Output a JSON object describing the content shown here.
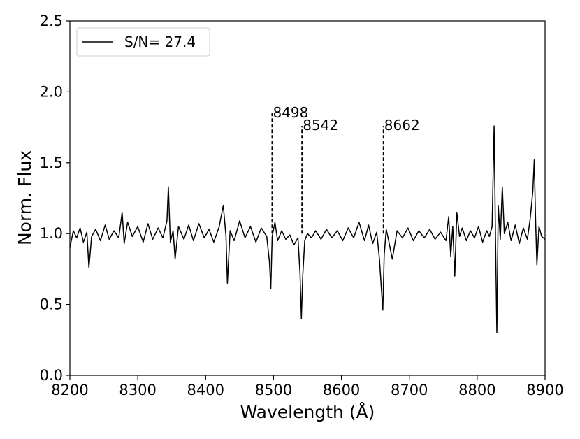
{
  "chart_data": {
    "type": "line",
    "xlabel": "Wavelength (Å)",
    "ylabel": "Norm. Flux",
    "xlim": [
      8200,
      8900
    ],
    "ylim": [
      0.0,
      2.5
    ],
    "xticks": [
      8200,
      8300,
      8400,
      8500,
      8600,
      8700,
      8800,
      8900
    ],
    "yticks": [
      0.0,
      0.5,
      1.0,
      1.5,
      2.0,
      2.5
    ],
    "ytick_labels": [
      "0.0",
      "0.5",
      "1.0",
      "1.5",
      "2.0",
      "2.5"
    ],
    "legend": {
      "location": "upper-left",
      "label": "S/N= 27.4"
    },
    "grid": false,
    "line_color": "#000000",
    "series": [
      {
        "name": "S/N= 27.4",
        "x": [
          8200,
          8205,
          8210,
          8215,
          8220,
          8225,
          8228,
          8232,
          8238,
          8245,
          8252,
          8258,
          8265,
          8272,
          8277,
          8280,
          8285,
          8292,
          8300,
          8308,
          8315,
          8322,
          8330,
          8337,
          8343,
          8345,
          8348,
          8352,
          8355,
          8360,
          8368,
          8375,
          8382,
          8390,
          8398,
          8405,
          8412,
          8420,
          8426,
          8430,
          8432,
          8436,
          8442,
          8450,
          8458,
          8466,
          8474,
          8482,
          8490,
          8494,
          8496,
          8498,
          8502,
          8506,
          8512,
          8518,
          8524,
          8530,
          8536,
          8539,
          8541,
          8543,
          8546,
          8550,
          8556,
          8562,
          8570,
          8578,
          8586,
          8594,
          8602,
          8610,
          8618,
          8626,
          8634,
          8640,
          8646,
          8652,
          8656,
          8659,
          8661,
          8663,
          8666,
          8670,
          8675,
          8682,
          8690,
          8698,
          8706,
          8714,
          8722,
          8730,
          8738,
          8746,
          8754,
          8758,
          8761,
          8764,
          8767,
          8770,
          8774,
          8778,
          8784,
          8790,
          8796,
          8802,
          8808,
          8814,
          8818,
          8822,
          8825,
          8827,
          8829,
          8831,
          8834,
          8837,
          8840,
          8845,
          8850,
          8856,
          8862,
          8868,
          8874,
          8878,
          8882,
          8884,
          8886,
          8888,
          8891,
          8895,
          8900
        ],
        "values": [
          0.9,
          1.02,
          0.97,
          1.04,
          0.94,
          1.01,
          0.76,
          0.98,
          1.03,
          0.95,
          1.06,
          0.96,
          1.02,
          0.97,
          1.15,
          0.93,
          1.08,
          0.98,
          1.05,
          0.94,
          1.07,
          0.96,
          1.04,
          0.97,
          1.09,
          1.33,
          0.94,
          1.02,
          0.82,
          1.05,
          0.96,
          1.06,
          0.95,
          1.07,
          0.97,
          1.03,
          0.94,
          1.05,
          1.2,
          0.98,
          0.65,
          1.02,
          0.95,
          1.09,
          0.97,
          1.05,
          0.94,
          1.04,
          0.98,
          0.8,
          0.61,
          0.98,
          1.08,
          0.95,
          1.02,
          0.96,
          0.99,
          0.92,
          0.97,
          0.72,
          0.4,
          0.7,
          0.95,
          1.0,
          0.97,
          1.02,
          0.96,
          1.03,
          0.97,
          1.02,
          0.95,
          1.04,
          0.97,
          1.08,
          0.95,
          1.06,
          0.93,
          1.01,
          0.82,
          0.6,
          0.46,
          0.85,
          1.03,
          0.94,
          0.82,
          1.02,
          0.97,
          1.04,
          0.95,
          1.02,
          0.97,
          1.03,
          0.96,
          1.01,
          0.95,
          1.12,
          0.84,
          1.05,
          0.7,
          1.15,
          0.98,
          1.04,
          0.95,
          1.02,
          0.97,
          1.05,
          0.94,
          1.02,
          0.98,
          1.05,
          1.76,
          0.95,
          0.3,
          1.2,
          0.96,
          1.33,
          1.0,
          1.08,
          0.95,
          1.06,
          0.93,
          1.04,
          0.96,
          1.1,
          1.3,
          1.52,
          1.1,
          0.78,
          1.05,
          0.98,
          0.96
        ]
      }
    ],
    "annotations": [
      {
        "label": "8498",
        "x": 8498,
        "y_top": 1.85
      },
      {
        "label": "8542",
        "x": 8542,
        "y_top": 1.76
      },
      {
        "label": "8662",
        "x": 8662,
        "y_top": 1.76
      }
    ]
  }
}
